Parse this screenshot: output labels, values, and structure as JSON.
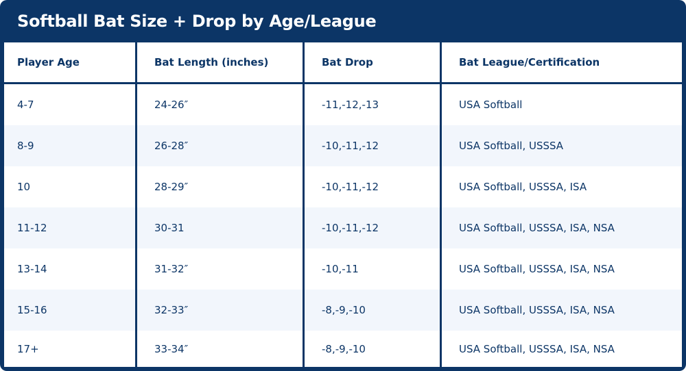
{
  "title": "Softball Bat Size + Drop by Age/League",
  "columns": [
    "Player Age",
    "Bat Length (inches)",
    "Bat Drop",
    "Bat League/Certification"
  ],
  "rows": [
    [
      "4-7",
      "24-26″",
      "-11,-12,-13",
      "USA Softball"
    ],
    [
      "8-9",
      "26-28″",
      "-10,-11,-12",
      "USA Softball, USSSA"
    ],
    [
      "10",
      "28-29″",
      "-10,-11,-12",
      "USA Softball, USSSA, ISA"
    ],
    [
      "11-12",
      "30-31",
      "-10,-11,-12",
      "USA Softball, USSSA, ISA, NSA"
    ],
    [
      "13-14",
      "31-32″",
      "-10,-11",
      "USA Softball, USSSA, ISA, NSA"
    ],
    [
      "15-16",
      "32-33″",
      "-8,-9,-10",
      "USA Softball, USSSA, ISA, NSA"
    ],
    [
      "17+",
      "33-34″",
      "-8,-9,-10",
      "USA Softball, USSSA, ISA, NSA"
    ]
  ],
  "colors": {
    "navy": "#0c3566",
    "row_alt": "#f2f6fc",
    "row": "#ffffff"
  }
}
